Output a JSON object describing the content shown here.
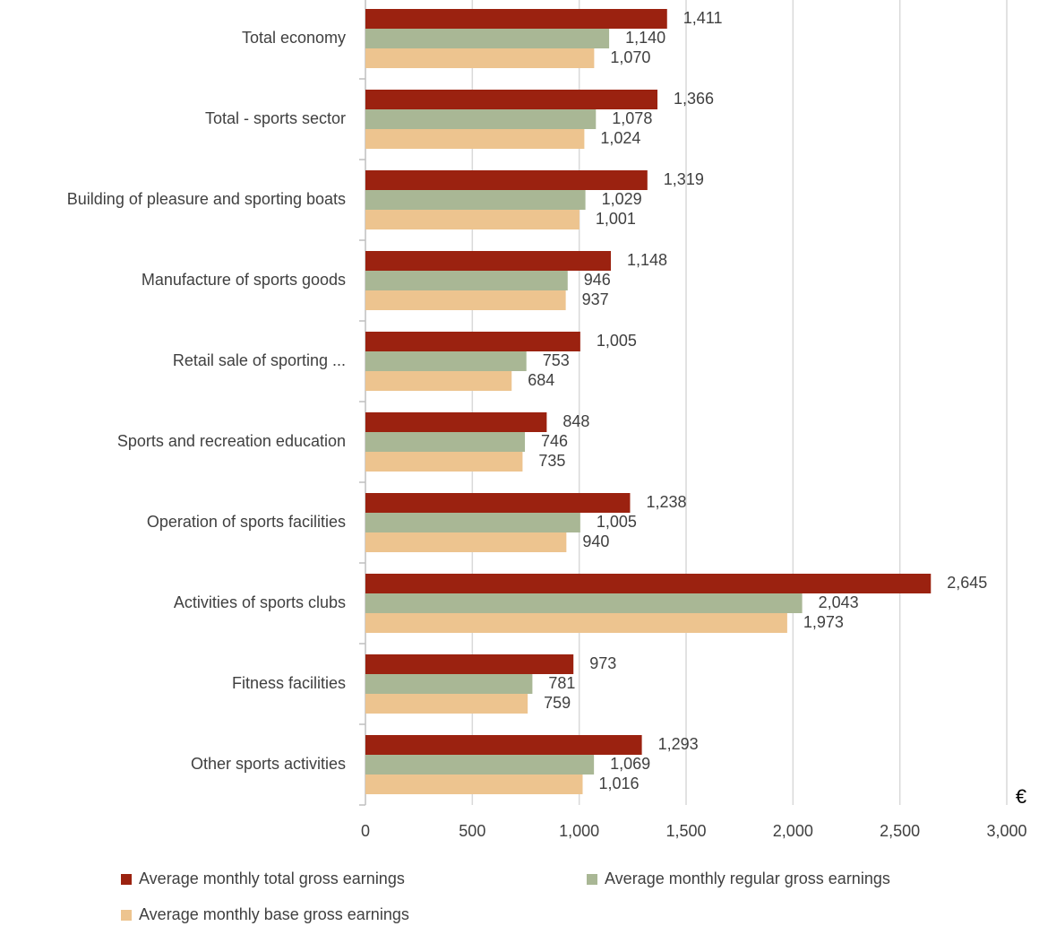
{
  "chart_data": {
    "type": "barh",
    "categories": [
      "Total economy",
      "Total - sports sector",
      "Building of pleasure and sporting boats",
      "Manufacture of sports goods",
      "Retail sale of sporting ...",
      "Sports and recreation education",
      "Operation of sports facilities",
      "Activities of sports clubs",
      "Fitness facilities",
      "Other sports activities"
    ],
    "series": [
      {
        "name": "Average monthly total gross earnings",
        "color": "#9b2210",
        "values": [
          1411,
          1366,
          1319,
          1148,
          1005,
          848,
          1238,
          2645,
          973,
          1293
        ],
        "value_labels": [
          "1,411",
          "1,366",
          "1,319",
          "1,148",
          "1,005",
          "848",
          "1,238",
          "2,645",
          "973",
          "1,293"
        ]
      },
      {
        "name": "Average monthly regular gross earnings",
        "color": "#a9b795",
        "values": [
          1140,
          1078,
          1029,
          946,
          753,
          746,
          1005,
          2043,
          781,
          1069
        ],
        "value_labels": [
          "1,140",
          "1,078",
          "1,029",
          "946",
          "753",
          "746",
          "1,005",
          "2,043",
          "781",
          "1,069"
        ]
      },
      {
        "name": "Average monthly base gross earnings",
        "color": "#edc48f",
        "values": [
          1070,
          1024,
          1001,
          937,
          684,
          735,
          940,
          1973,
          759,
          1016
        ],
        "value_labels": [
          "1,070",
          "1,024",
          "1,001",
          "937",
          "684",
          "735",
          "940",
          "1,973",
          "759",
          "1,016"
        ]
      }
    ],
    "xlabel": "€",
    "xlim": [
      0,
      3000
    ],
    "xticks": [
      0,
      500,
      {
        "value": 1000,
        "label": "1,000"
      },
      {
        "value": 1500,
        "label": "1,500"
      },
      {
        "value": 2000,
        "label": "2,000"
      },
      {
        "value": 2500,
        "label": "2,500"
      },
      {
        "value": 3000,
        "label": "3,000"
      }
    ],
    "grid": true
  }
}
